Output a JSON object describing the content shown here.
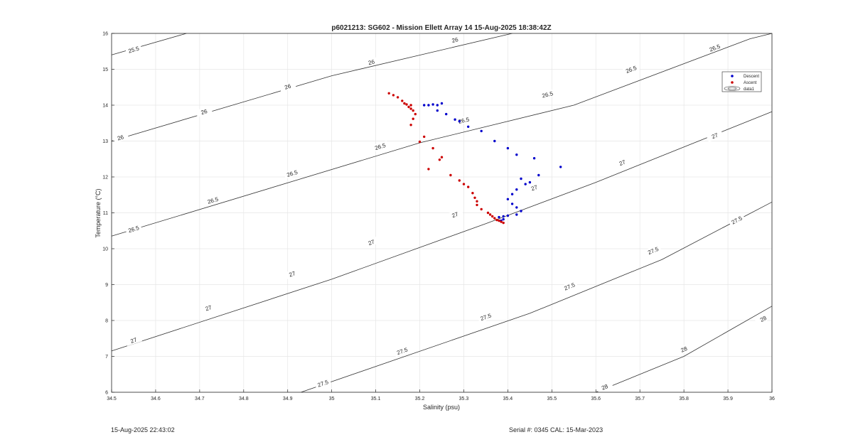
{
  "chart_data": {
    "type": "scatter",
    "title": "p6021213: SG602 - Mission Ellett Array 14 15-Aug-2025 18:38:42Z",
    "xlabel": "Salinity (psu)",
    "ylabel": "Temperature (°C)",
    "xlim": [
      34.5,
      36
    ],
    "ylim": [
      6,
      16
    ],
    "xticks": [
      "34.5",
      "34.6",
      "34.7",
      "34.8",
      "34.9",
      "35",
      "35.1",
      "35.2",
      "35.3",
      "35.4",
      "35.5",
      "35.6",
      "35.7",
      "35.8",
      "35.9",
      "36"
    ],
    "yticks": [
      "6",
      "7",
      "8",
      "9",
      "10",
      "11",
      "12",
      "13",
      "14",
      "15",
      "16"
    ],
    "grid": true,
    "legend_position": "top-right",
    "legend": [
      "Descent",
      "Ascent",
      "data1"
    ],
    "colors": {
      "descent": "#0000cc",
      "ascent": "#cc0000",
      "contour": "#333333",
      "grid": "#e6e6e6",
      "axis": "#262626"
    },
    "contours": [
      {
        "label": "25.5",
        "points": [
          [
            34.5,
            15.4
          ],
          [
            34.67,
            16.0
          ]
        ],
        "labels_at": [
          [
            34.55,
            15.55
          ]
        ]
      },
      {
        "label": "26",
        "points": [
          [
            34.5,
            13.0
          ],
          [
            35.0,
            14.82
          ],
          [
            35.41,
            16.0
          ]
        ],
        "labels_at": [
          [
            34.52,
            13.1
          ],
          [
            34.71,
            13.82
          ],
          [
            34.9,
            14.52
          ],
          [
            35.09,
            15.2
          ],
          [
            35.28,
            15.82
          ]
        ]
      },
      {
        "label": "26.5",
        "points": [
          [
            34.5,
            10.35
          ],
          [
            35.2,
            12.95
          ],
          [
            35.55,
            14.0
          ],
          [
            35.95,
            15.85
          ],
          [
            36.0,
            16.0
          ]
        ],
        "labels_at": [
          [
            34.55,
            10.55
          ],
          [
            34.73,
            11.35
          ],
          [
            34.91,
            12.1
          ],
          [
            35.11,
            12.85
          ],
          [
            35.3,
            13.58
          ],
          [
            35.49,
            14.3
          ],
          [
            35.68,
            15.0
          ],
          [
            35.87,
            15.6
          ]
        ]
      },
      {
        "label": "27",
        "points": [
          [
            34.5,
            7.15
          ],
          [
            35.0,
            9.15
          ],
          [
            35.35,
            10.7
          ],
          [
            35.6,
            11.85
          ],
          [
            36.0,
            13.82
          ]
        ],
        "labels_at": [
          [
            34.55,
            7.45
          ],
          [
            34.72,
            8.35
          ],
          [
            34.91,
            9.3
          ],
          [
            35.09,
            10.18
          ],
          [
            35.28,
            10.95
          ],
          [
            35.46,
            11.7
          ],
          [
            35.66,
            12.4
          ],
          [
            35.87,
            13.15
          ]
        ]
      },
      {
        "label": "27.5",
        "points": [
          [
            34.93,
            6.0
          ],
          [
            35.45,
            8.2
          ],
          [
            35.75,
            9.7
          ],
          [
            36.0,
            11.3
          ]
        ],
        "labels_at": [
          [
            34.98,
            6.25
          ],
          [
            35.16,
            7.15
          ],
          [
            35.35,
            8.1
          ],
          [
            35.54,
            8.95
          ],
          [
            35.73,
            9.95
          ],
          [
            35.92,
            10.8
          ]
        ]
      },
      {
        "label": "28",
        "points": [
          [
            35.6,
            6.0
          ],
          [
            35.8,
            7.0
          ],
          [
            36.0,
            8.4
          ]
        ],
        "labels_at": [
          [
            35.62,
            6.15
          ],
          [
            35.8,
            7.2
          ],
          [
            35.98,
            8.05
          ]
        ]
      }
    ],
    "series": [
      {
        "name": "Descent",
        "marker": "circle",
        "points": [
          [
            35.22,
            14.0
          ],
          [
            35.23,
            14.02
          ],
          [
            35.24,
            14.0
          ],
          [
            35.25,
            14.05
          ],
          [
            35.21,
            14.0
          ],
          [
            35.24,
            13.85
          ],
          [
            35.26,
            13.75
          ],
          [
            35.28,
            13.6
          ],
          [
            35.29,
            13.55
          ],
          [
            35.31,
            13.4
          ],
          [
            35.34,
            13.28
          ],
          [
            35.37,
            13.0
          ],
          [
            35.4,
            12.8
          ],
          [
            35.42,
            12.62
          ],
          [
            35.46,
            12.52
          ],
          [
            35.52,
            12.28
          ],
          [
            35.47,
            12.05
          ],
          [
            35.43,
            11.95
          ],
          [
            35.45,
            11.85
          ],
          [
            35.44,
            11.8
          ],
          [
            35.42,
            11.65
          ],
          [
            35.41,
            11.52
          ],
          [
            35.4,
            11.38
          ],
          [
            35.41,
            11.25
          ],
          [
            35.42,
            11.15
          ],
          [
            35.43,
            11.05
          ],
          [
            35.42,
            10.95
          ],
          [
            35.4,
            10.92
          ],
          [
            35.39,
            10.9
          ],
          [
            35.38,
            10.88
          ],
          [
            35.39,
            10.82
          ],
          [
            35.385,
            10.78
          ]
        ]
      },
      {
        "name": "Ascent",
        "marker": "circle",
        "points": [
          [
            35.13,
            14.33
          ],
          [
            35.14,
            14.28
          ],
          [
            35.15,
            14.22
          ],
          [
            35.16,
            14.12
          ],
          [
            35.165,
            14.05
          ],
          [
            35.17,
            14.02
          ],
          [
            35.18,
            14.0
          ],
          [
            35.175,
            13.95
          ],
          [
            35.18,
            13.9
          ],
          [
            35.185,
            13.85
          ],
          [
            35.19,
            13.75
          ],
          [
            35.185,
            13.62
          ],
          [
            35.18,
            13.45
          ],
          [
            35.2,
            12.98
          ],
          [
            35.21,
            13.12
          ],
          [
            35.23,
            12.8
          ],
          [
            35.25,
            12.55
          ],
          [
            35.245,
            12.48
          ],
          [
            35.22,
            12.22
          ],
          [
            35.27,
            12.05
          ],
          [
            35.29,
            11.9
          ],
          [
            35.3,
            11.8
          ],
          [
            35.31,
            11.72
          ],
          [
            35.32,
            11.55
          ],
          [
            35.325,
            11.42
          ],
          [
            35.33,
            11.32
          ],
          [
            35.33,
            11.22
          ],
          [
            35.34,
            11.1
          ],
          [
            35.355,
            11.0
          ],
          [
            35.36,
            10.95
          ],
          [
            35.365,
            10.9
          ],
          [
            35.37,
            10.85
          ],
          [
            35.375,
            10.8
          ],
          [
            35.385,
            10.75
          ],
          [
            35.39,
            10.72
          ],
          [
            35.38,
            10.78
          ]
        ]
      }
    ]
  },
  "footer": {
    "timestamp": "15-Aug-2025 22:43:02",
    "serial": "Serial #: 0345  CAL: 15-Mar-2023"
  }
}
